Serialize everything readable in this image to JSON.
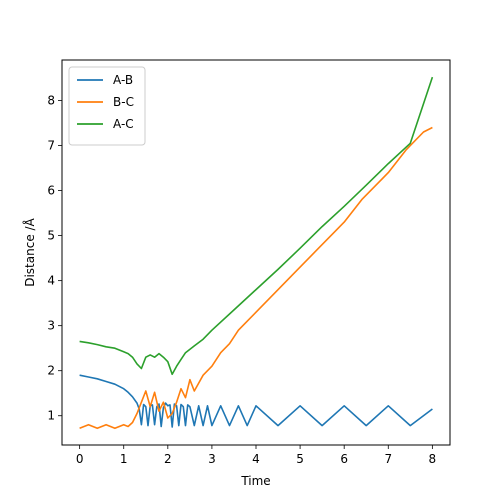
{
  "chart_data": {
    "type": "line",
    "title": "",
    "xlabel": "Time",
    "ylabel": "Distance /Å",
    "xlim": [
      -0.4,
      8.4
    ],
    "ylim": [
      0.35,
      8.9
    ],
    "xticks": [
      0,
      1,
      2,
      3,
      4,
      5,
      6,
      7,
      8
    ],
    "yticks": [
      1,
      2,
      3,
      4,
      5,
      6,
      7,
      8
    ],
    "grid": false,
    "legend_position": "top-left",
    "series": [
      {
        "name": "A-B",
        "color": "#1f77b4",
        "x": [
          0,
          0.2,
          0.4,
          0.6,
          0.8,
          1.0,
          1.1,
          1.2,
          1.3,
          1.35,
          1.4,
          1.45,
          1.5,
          1.55,
          1.6,
          1.65,
          1.7,
          1.75,
          1.8,
          1.85,
          1.9,
          1.95,
          2.0,
          2.05,
          2.1,
          2.15,
          2.2,
          2.25,
          2.3,
          2.35,
          2.4,
          2.45,
          2.5,
          2.6,
          2.7,
          2.8,
          2.9,
          3.0,
          3.2,
          3.4,
          3.6,
          3.8,
          4.0,
          4.5,
          5.0,
          5.5,
          6.0,
          6.5,
          7.0,
          7.5,
          8.0
        ],
        "y": [
          1.9,
          1.86,
          1.82,
          1.76,
          1.7,
          1.6,
          1.52,
          1.42,
          1.28,
          1.15,
          0.8,
          1.25,
          1.2,
          0.78,
          1.22,
          1.24,
          0.8,
          1.2,
          1.26,
          0.76,
          1.18,
          1.28,
          1.22,
          1.24,
          0.75,
          1.26,
          1.22,
          0.78,
          1.25,
          1.2,
          0.78,
          1.24,
          1.2,
          0.78,
          1.22,
          0.78,
          1.22,
          0.78,
          1.22,
          0.78,
          1.22,
          0.78,
          1.22,
          0.78,
          1.22,
          0.78,
          1.22,
          0.78,
          1.22,
          0.78,
          1.15
        ]
      },
      {
        "name": "B-C",
        "color": "#ff7f0e",
        "x": [
          0,
          0.2,
          0.4,
          0.6,
          0.8,
          1.0,
          1.1,
          1.2,
          1.3,
          1.4,
          1.5,
          1.6,
          1.7,
          1.8,
          1.9,
          2.0,
          2.1,
          2.2,
          2.3,
          2.4,
          2.5,
          2.6,
          2.8,
          3.0,
          3.2,
          3.4,
          3.6,
          3.8,
          4.0,
          4.4,
          4.8,
          5.0,
          5.4,
          5.8,
          6.0,
          6.4,
          6.8,
          7.0,
          7.4,
          7.8,
          8.0
        ],
        "y": [
          0.72,
          0.8,
          0.72,
          0.8,
          0.72,
          0.8,
          0.76,
          0.85,
          1.05,
          1.3,
          1.55,
          1.2,
          1.52,
          1.1,
          1.3,
          0.95,
          1.05,
          1.3,
          1.6,
          1.4,
          1.8,
          1.55,
          1.9,
          2.1,
          2.4,
          2.6,
          2.9,
          3.1,
          3.3,
          3.7,
          4.1,
          4.3,
          4.7,
          5.1,
          5.3,
          5.8,
          6.2,
          6.4,
          6.9,
          7.3,
          7.4
        ]
      },
      {
        "name": "A-C",
        "color": "#2ca02c",
        "x": [
          0,
          0.2,
          0.4,
          0.6,
          0.8,
          1.0,
          1.1,
          1.2,
          1.3,
          1.4,
          1.5,
          1.6,
          1.7,
          1.8,
          1.9,
          2.0,
          2.1,
          2.2,
          2.3,
          2.4,
          2.6,
          2.8,
          3.0,
          3.5,
          4.0,
          4.5,
          5.0,
          5.5,
          6.0,
          6.5,
          7.0,
          7.5,
          8.0
        ],
        "y": [
          2.65,
          2.62,
          2.58,
          2.53,
          2.5,
          2.42,
          2.38,
          2.3,
          2.15,
          2.05,
          2.3,
          2.35,
          2.3,
          2.38,
          2.3,
          2.2,
          1.92,
          2.1,
          2.25,
          2.4,
          2.55,
          2.7,
          2.9,
          3.35,
          3.8,
          4.25,
          4.72,
          5.2,
          5.65,
          6.12,
          6.6,
          7.05,
          8.52
        ]
      }
    ]
  }
}
